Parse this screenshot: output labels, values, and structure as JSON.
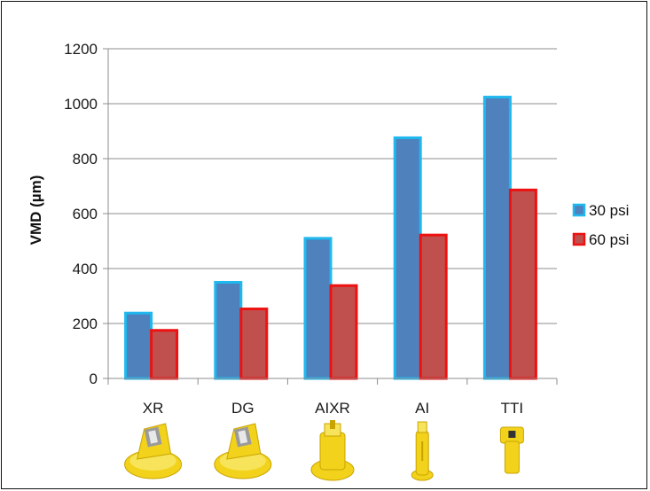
{
  "chart_data": {
    "type": "bar",
    "title": "",
    "xlabel": "",
    "ylabel": "VMD (µm)",
    "categories": [
      "XR",
      "DG",
      "AIXR",
      "AI",
      "TTI"
    ],
    "series": [
      {
        "name": "30 psi",
        "values": [
          238,
          350,
          510,
          876,
          1024
        ],
        "fill": "#4f81bd",
        "stroke": "#1fb8ef"
      },
      {
        "name": "60 psi",
        "values": [
          175,
          253,
          338,
          522,
          686
        ],
        "fill": "#c0504d",
        "stroke": "#ee1111"
      }
    ],
    "ylim": [
      0,
      1200
    ],
    "yticks": [
      0,
      200,
      400,
      600,
      800,
      1000,
      1200
    ],
    "grid": true,
    "legend": "right",
    "icons": [
      "nozzle-xr-icon",
      "nozzle-dg-icon",
      "nozzle-aixr-icon",
      "nozzle-ai-icon",
      "nozzle-tti-icon"
    ],
    "icon_color": "#f2d21b"
  }
}
